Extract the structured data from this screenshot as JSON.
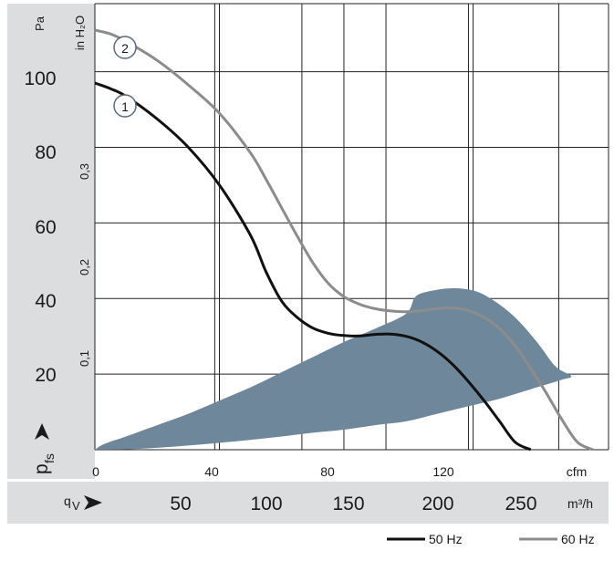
{
  "chart_data": {
    "type": "line",
    "units": {
      "y_primary": "Pa",
      "y_secondary": "in H₂O",
      "x_primary": "cfm",
      "x_secondary": "m³/h"
    },
    "y_axis_symbol": "p",
    "y_axis_subscript": "fs",
    "x_axis_symbol": "q",
    "x_axis_subscript": "V",
    "y_primary_ticks": [
      "20",
      "40",
      "60",
      "80",
      "100"
    ],
    "y_secondary_ticks": [
      "0,1",
      "0,2",
      "0,3"
    ],
    "x_primary_ticks": [
      "0",
      "40",
      "80",
      "120"
    ],
    "x_secondary_ticks": [
      "50",
      "100",
      "150",
      "200",
      "250"
    ],
    "xlim_cfm": [
      0,
      165
    ],
    "ylim_pa": [
      0,
      118
    ],
    "grid": true,
    "legend_position": "bottom-right",
    "series": [
      {
        "name": "50 Hz",
        "marker_label": "1",
        "color": "#111111",
        "x_cfm": [
          0,
          5,
          10,
          20,
          30,
          40,
          50,
          55,
          60,
          65,
          70,
          75,
          80,
          85,
          90,
          95,
          100,
          105,
          110,
          115,
          120,
          125,
          130,
          135,
          140
        ],
        "y_pa": [
          97,
          95.5,
          93.5,
          87.5,
          80,
          70,
          56.7,
          47,
          39.3,
          35,
          32.2,
          30.8,
          30.2,
          30.1,
          30.5,
          30.6,
          30,
          28.5,
          26,
          22.5,
          18,
          13,
          7.5,
          2,
          0
        ]
      },
      {
        "name": "60 Hz",
        "marker_label": "2",
        "color": "#8c8c8c",
        "x_cfm": [
          0,
          5,
          10,
          20,
          30,
          40,
          50,
          55,
          60,
          65,
          70,
          75,
          80,
          85,
          90,
          95,
          100,
          105,
          110,
          115,
          120,
          125,
          130,
          135,
          140,
          145,
          150,
          155,
          160
        ],
        "y_pa": [
          111,
          110,
          108,
          103,
          96.5,
          89,
          78.5,
          71.5,
          64,
          56.5,
          49.5,
          44,
          40.5,
          38.5,
          37.3,
          36.7,
          36.5,
          36.8,
          37.3,
          37.5,
          36.8,
          35,
          32,
          27.5,
          21.5,
          15,
          8,
          2,
          0
        ]
      }
    ],
    "operating_region": {
      "color": "#6f879b",
      "outline_cfm_pa": [
        [
          0,
          0
        ],
        [
          3,
          1.5
        ],
        [
          10,
          3.5
        ],
        [
          20,
          6.5
        ],
        [
          30,
          9.5
        ],
        [
          40,
          13
        ],
        [
          50,
          16.5
        ],
        [
          60,
          20.5
        ],
        [
          70,
          24.5
        ],
        [
          80,
          28.5
        ],
        [
          90,
          32
        ],
        [
          100,
          36
        ],
        [
          103,
          40.5
        ],
        [
          108,
          42
        ],
        [
          115,
          42.7
        ],
        [
          122,
          42
        ],
        [
          128,
          39.5
        ],
        [
          135,
          35
        ],
        [
          142,
          28.5
        ],
        [
          148,
          22
        ],
        [
          153,
          19.5
        ],
        [
          150,
          18.5
        ],
        [
          140,
          16
        ],
        [
          130,
          13.5
        ],
        [
          120,
          11.5
        ],
        [
          110,
          9.5
        ],
        [
          100,
          7.5
        ],
        [
          90,
          6.5
        ],
        [
          80,
          5.3
        ],
        [
          70,
          4.5
        ],
        [
          60,
          3.5
        ],
        [
          50,
          2.6
        ],
        [
          40,
          1.8
        ],
        [
          30,
          1.1
        ],
        [
          20,
          0.5
        ],
        [
          10,
          0.1
        ],
        [
          0,
          0
        ]
      ]
    }
  }
}
